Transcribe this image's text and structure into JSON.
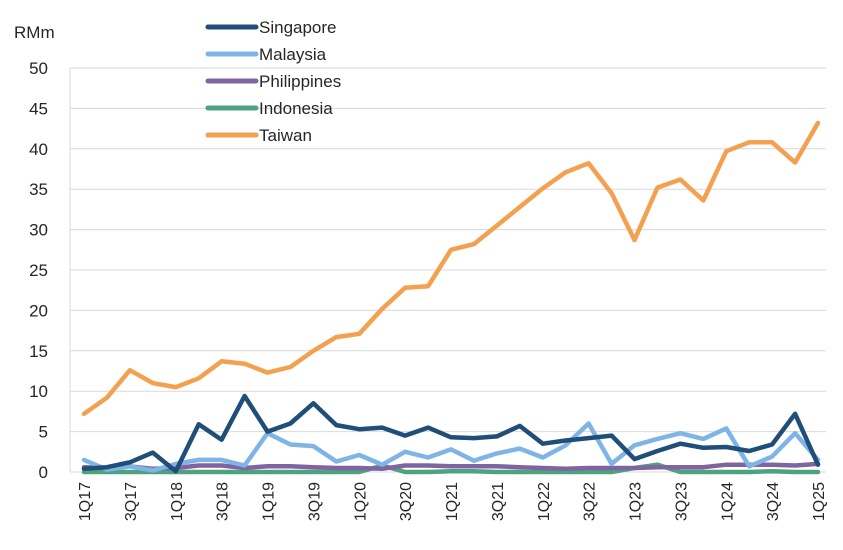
{
  "chart_data": {
    "type": "line",
    "ylabel": "RMm",
    "ylim": [
      0,
      50
    ],
    "yticks": [
      0,
      5,
      10,
      15,
      20,
      25,
      30,
      35,
      40,
      45,
      50
    ],
    "grid": true,
    "legend_position": "top-left",
    "x": [
      "1Q17",
      "2Q17",
      "3Q17",
      "4Q17",
      "1Q18",
      "2Q18",
      "3Q18",
      "4Q18",
      "1Q19",
      "2Q19",
      "3Q19",
      "4Q19",
      "1Q20",
      "2Q20",
      "3Q20",
      "4Q20",
      "1Q21",
      "2Q21",
      "3Q21",
      "4Q21",
      "1Q22",
      "2Q22",
      "3Q22",
      "4Q22",
      "1Q23",
      "2Q23",
      "3Q23",
      "4Q23",
      "1Q24",
      "2Q24",
      "3Q24",
      "4Q24",
      "1Q25"
    ],
    "xtick_labels": [
      "1Q17",
      "3Q17",
      "1Q18",
      "3Q18",
      "1Q19",
      "3Q19",
      "1Q20",
      "3Q20",
      "1Q21",
      "3Q21",
      "1Q22",
      "3Q22",
      "1Q23",
      "3Q23",
      "1Q24",
      "3Q24",
      "1Q25"
    ],
    "series": [
      {
        "name": "Singapore",
        "color": "#1f4e79",
        "values": [
          0.4,
          0.6,
          1.2,
          2.4,
          0.1,
          5.9,
          4.0,
          9.4,
          5.0,
          6.0,
          8.5,
          5.8,
          5.3,
          5.5,
          4.5,
          5.5,
          4.3,
          4.2,
          4.4,
          5.7,
          3.5,
          3.9,
          4.2,
          4.5,
          1.6,
          2.6,
          3.5,
          3.0,
          3.1,
          2.6,
          3.4,
          7.2,
          0.9
        ]
      },
      {
        "name": "Malaysia",
        "color": "#7fb4e6",
        "values": [
          1.5,
          0.3,
          0.7,
          0.2,
          1.0,
          1.5,
          1.5,
          0.8,
          4.8,
          3.4,
          3.2,
          1.3,
          2.1,
          0.9,
          2.5,
          1.8,
          2.8,
          1.4,
          2.3,
          2.9,
          1.8,
          3.3,
          6.0,
          1.0,
          3.3,
          4.1,
          4.8,
          4.1,
          5.4,
          0.7,
          1.9,
          4.8,
          1.5
        ]
      },
      {
        "name": "Philippines",
        "color": "#8064a2",
        "values": [
          0.6,
          0.5,
          0.7,
          0.4,
          0.5,
          0.8,
          0.8,
          0.5,
          0.7,
          0.7,
          0.6,
          0.5,
          0.5,
          0.4,
          0.8,
          0.8,
          0.7,
          0.7,
          0.7,
          0.6,
          0.5,
          0.4,
          0.5,
          0.5,
          0.5,
          0.6,
          0.6,
          0.6,
          0.9,
          0.9,
          0.9,
          0.8,
          1.0
        ]
      },
      {
        "name": "Indonesia",
        "color": "#4ea27f",
        "values": [
          0.0,
          0.0,
          0.0,
          0.0,
          0.0,
          0.0,
          0.0,
          0.0,
          0.0,
          0.0,
          0.0,
          0.0,
          0.0,
          0.8,
          0.0,
          0.0,
          0.1,
          0.1,
          0.0,
          0.0,
          0.0,
          0.0,
          0.0,
          0.0,
          0.5,
          0.9,
          0.0,
          0.0,
          0.0,
          0.0,
          0.1,
          0.0,
          0.0
        ]
      },
      {
        "name": "Taiwan",
        "color": "#f3a04f",
        "values": [
          7.2,
          9.2,
          12.6,
          11.0,
          10.5,
          11.6,
          13.7,
          13.4,
          12.3,
          13.0,
          15.0,
          16.7,
          17.1,
          20.2,
          22.8,
          23.0,
          27.5,
          28.2,
          30.5,
          32.8,
          35.1,
          37.1,
          38.2,
          34.5,
          28.7,
          35.2,
          36.2,
          33.6,
          39.7,
          40.8,
          40.8,
          38.3,
          43.2
        ]
      }
    ]
  }
}
